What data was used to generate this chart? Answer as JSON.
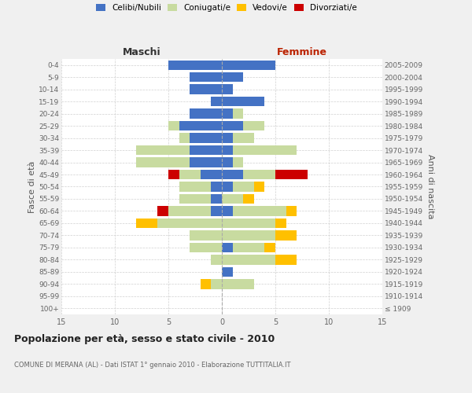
{
  "age_groups": [
    "100+",
    "95-99",
    "90-94",
    "85-89",
    "80-84",
    "75-79",
    "70-74",
    "65-69",
    "60-64",
    "55-59",
    "50-54",
    "45-49",
    "40-44",
    "35-39",
    "30-34",
    "25-29",
    "20-24",
    "15-19",
    "10-14",
    "5-9",
    "0-4"
  ],
  "birth_years": [
    "≤ 1909",
    "1910-1914",
    "1915-1919",
    "1920-1924",
    "1925-1929",
    "1930-1934",
    "1935-1939",
    "1940-1944",
    "1945-1949",
    "1950-1954",
    "1955-1959",
    "1960-1964",
    "1965-1969",
    "1970-1974",
    "1975-1979",
    "1980-1984",
    "1985-1989",
    "1990-1994",
    "1995-1999",
    "2000-2004",
    "2005-2009"
  ],
  "male_celibi": [
    0,
    0,
    0,
    0,
    0,
    0,
    0,
    0,
    1,
    1,
    1,
    2,
    3,
    3,
    3,
    4,
    3,
    1,
    3,
    3,
    5
  ],
  "male_coniugati": [
    0,
    0,
    1,
    0,
    1,
    3,
    3,
    6,
    4,
    3,
    3,
    2,
    5,
    5,
    1,
    1,
    0,
    0,
    0,
    0,
    0
  ],
  "male_vedovi": [
    0,
    0,
    1,
    0,
    0,
    0,
    0,
    2,
    0,
    0,
    0,
    0,
    0,
    0,
    0,
    0,
    0,
    0,
    0,
    0,
    0
  ],
  "male_divorziati": [
    0,
    0,
    0,
    0,
    0,
    0,
    0,
    0,
    1,
    0,
    0,
    1,
    0,
    0,
    0,
    0,
    0,
    0,
    0,
    0,
    0
  ],
  "female_nubili": [
    0,
    0,
    0,
    1,
    0,
    1,
    0,
    0,
    1,
    0,
    1,
    2,
    1,
    1,
    1,
    2,
    1,
    4,
    1,
    2,
    5
  ],
  "female_coniugate": [
    0,
    0,
    3,
    0,
    5,
    3,
    5,
    5,
    5,
    2,
    2,
    3,
    1,
    6,
    2,
    2,
    1,
    0,
    0,
    0,
    0
  ],
  "female_vedove": [
    0,
    0,
    0,
    0,
    2,
    1,
    2,
    1,
    1,
    1,
    1,
    0,
    0,
    0,
    0,
    0,
    0,
    0,
    0,
    0,
    0
  ],
  "female_divorziate": [
    0,
    0,
    0,
    0,
    0,
    0,
    0,
    0,
    0,
    0,
    0,
    3,
    0,
    0,
    0,
    0,
    0,
    0,
    0,
    0,
    0
  ],
  "color_celibi": "#4472c4",
  "color_coniugati": "#c8dba0",
  "color_vedovi": "#ffc000",
  "color_divorziati": "#cc0000",
  "legend_labels": [
    "Celibi/Nubili",
    "Coniugati/e",
    "Vedovi/e",
    "Divorziati/e"
  ],
  "title": "Popolazione per età, sesso e stato civile - 2010",
  "subtitle": "COMUNE DI MERANA (AL) - Dati ISTAT 1° gennaio 2010 - Elaborazione TUTTITALIA.IT",
  "label_maschi": "Maschi",
  "label_femmine": "Femmine",
  "label_fasce": "Fasce di età",
  "label_anni": "Anni di nascita",
  "xlim": 15,
  "xticks": [
    -15,
    -10,
    -5,
    0,
    5,
    10,
    15
  ],
  "bg_color": "#f0f0f0",
  "plot_bg": "#ffffff",
  "grid_color": "#cccccc"
}
